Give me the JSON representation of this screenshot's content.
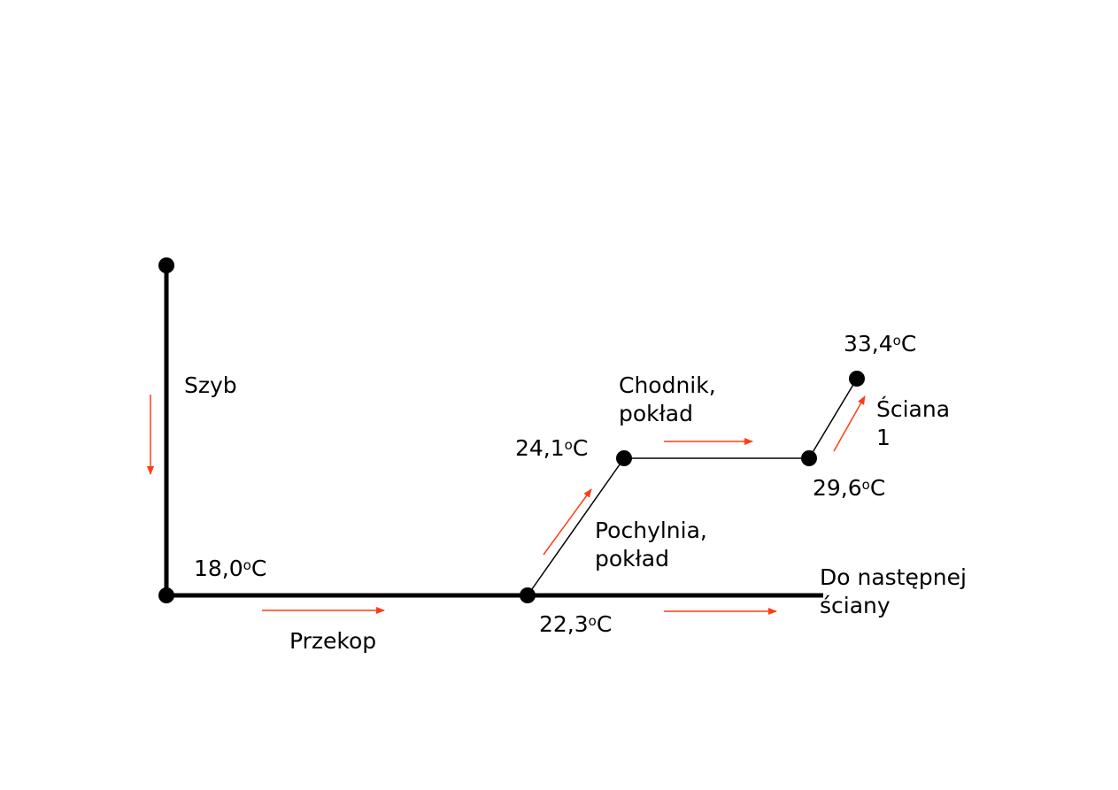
{
  "colors": {
    "line": "#000000",
    "arrow": "#ff3d14",
    "background": "#ffffff"
  },
  "segments": {
    "szyb": "Szyb",
    "przekop": "Przekop",
    "pochylnia": [
      "Pochylnia,",
      "pokład"
    ],
    "chodnik": [
      "Chodnik,",
      "pokład"
    ],
    "sciana": [
      "Ściana",
      "1"
    ],
    "do_nastepnej": [
      "Do następnej",
      "ściany"
    ]
  },
  "temperatures": {
    "shaft_bottom": {
      "value": "18,0",
      "sup": "o",
      "unit": "C"
    },
    "przekop_end": {
      "value": "22,3",
      "sup": "o",
      "unit": "C"
    },
    "pochylnia_top": {
      "value": "24,1",
      "sup": "o",
      "unit": "C"
    },
    "chodnik_end": {
      "value": "29,6",
      "sup": "o",
      "unit": "C"
    },
    "sciana_end": {
      "value": "33,4",
      "sup": "o",
      "unit": "C"
    }
  }
}
